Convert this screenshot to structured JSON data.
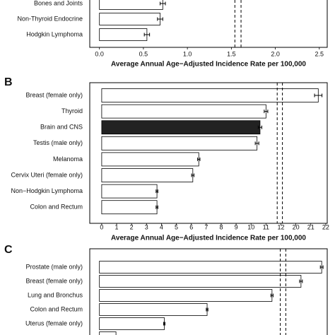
{
  "chart_data": [
    {
      "type": "bar",
      "orientation": "horizontal",
      "categories": [
        "Bones and Joints",
        "Non-Thyroid Endocrine",
        "Hodgkin Lymphoma"
      ],
      "values": [
        0.72,
        0.69,
        0.54
      ],
      "errors": [
        0.03,
        0.03,
        0.03
      ],
      "colors": [
        "#ffffff",
        "#ffffff",
        "#ffffff"
      ],
      "xlim": [
        -0.11,
        2.59
      ],
      "xticks": [
        {
          "value": 0,
          "label": "0.0"
        },
        0.5,
        {
          "value": 1,
          "label": "1.0"
        },
        1.5,
        {
          "value": 2,
          "label": "2.0"
        },
        2.5
      ],
      "ref_lines": [
        1.54,
        1.61
      ],
      "xlabel": "Average Annual Age−Adjusted Incidence Rate per 100,000"
    },
    {
      "type": "bar",
      "orientation": "horizontal",
      "panel_label": "B",
      "categories": [
        "Breast (female only)",
        "Thyroid",
        "Brain and CNS",
        "Testis (male only)",
        "Melanoma",
        "Cervix Uteri  (female only)",
        "Non−Hodgkin Lymphoma",
        "Colon and Rectum"
      ],
      "values": [
        21.5,
        11.0,
        10.6,
        10.4,
        6.5,
        6.1,
        3.7,
        3.7
      ],
      "errors": [
        0.25,
        0.12,
        0.12,
        0.12,
        0.08,
        0.08,
        0.06,
        0.06
      ],
      "colors": [
        "#ffffff",
        "#ffffff",
        "#222222",
        "#ffffff",
        "#ffffff",
        "#ffffff",
        "#ffffff",
        "#ffffff"
      ],
      "xlim": [
        -0.8,
        22.1
      ],
      "xbreak": [
        12.6,
        19.6
      ],
      "xticks": [
        0,
        1,
        2,
        3,
        4,
        5,
        6,
        7,
        8,
        9,
        10,
        11,
        12,
        20,
        21,
        22
      ],
      "ref_lines": [
        11.75,
        12.1
      ],
      "xlabel": "Average Annual Age−Adjusted Incidence Rate per 100,000"
    },
    {
      "type": "bar",
      "orientation": "horizontal",
      "panel_label": "C",
      "categories": [
        "Prostate (male only)",
        "Breast (female only)",
        "Lung and Bronchus",
        "Colon and  Rectum",
        "Uterus (female only)",
        null
      ],
      "values": [
        161,
        146,
        125,
        78,
        47,
        12
      ],
      "errors": [
        1,
        1,
        0.8,
        0.6,
        0.5,
        0.3
      ],
      "colors": [
        "#ffffff",
        "#ffffff",
        "#ffffff",
        "#ffffff",
        "#ffffff",
        "#ffffff"
      ],
      "xlim": [
        -7,
        165
      ],
      "ref_lines": [
        131,
        135
      ]
    }
  ]
}
